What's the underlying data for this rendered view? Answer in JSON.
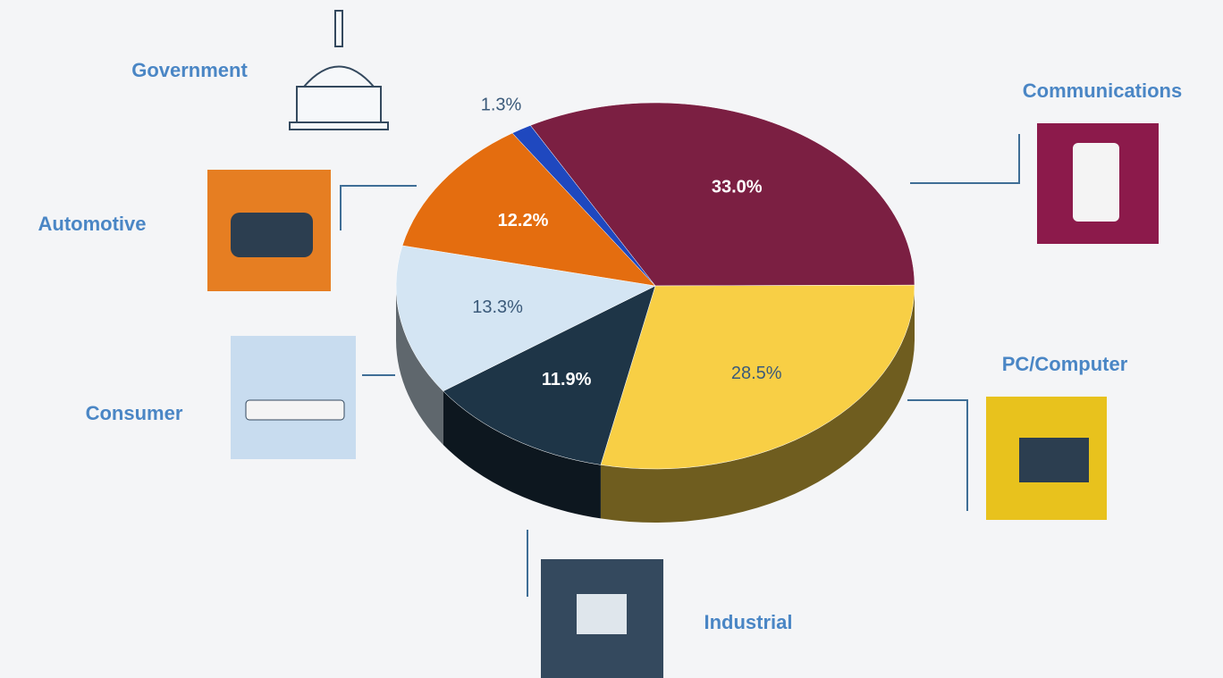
{
  "chart_data": {
    "type": "pie",
    "categories": [
      "Communications",
      "PC/Computer",
      "Industrial",
      "Consumer",
      "Automotive",
      "Government"
    ],
    "values": [
      33.0,
      28.5,
      11.9,
      13.3,
      12.2,
      1.3
    ],
    "value_labels": [
      "33.0%",
      "28.5%",
      "11.9%",
      "13.3%",
      "12.2%",
      "1.3%"
    ],
    "colors": [
      "#7b1f42",
      "#f8cf45",
      "#1e3547",
      "#d4e5f3",
      "#e46d0f",
      "#1f48bf"
    ]
  }
}
